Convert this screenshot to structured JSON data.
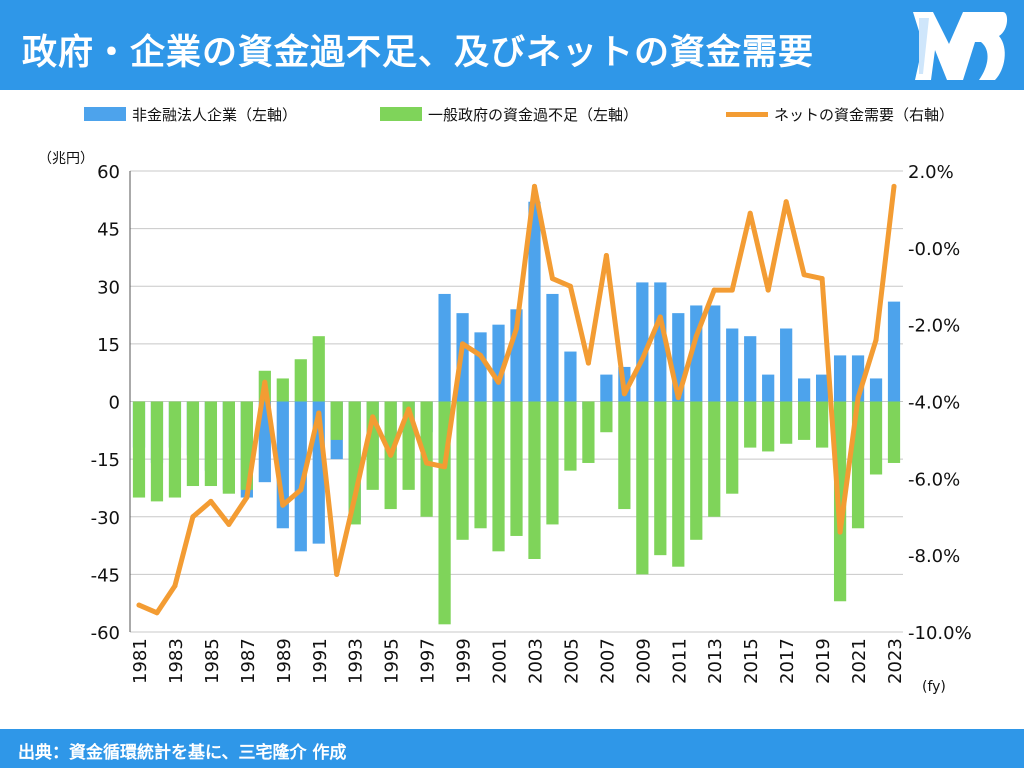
{
  "header": {
    "title": "政府・企業の資金過不足、及びネットの資金需要"
  },
  "footer": {
    "source": "出典：資金循環統計を基に、三宅隆介 作成"
  },
  "colors": {
    "header_bg": "#2f97e8",
    "corporate": "#4da3ec",
    "government": "#7fd45a",
    "net": "#f39c33"
  },
  "chart_data": {
    "type": "bar+line",
    "categories": [
      "1981",
      "1982",
      "1983",
      "1984",
      "1985",
      "1986",
      "1987",
      "1988",
      "1989",
      "1990",
      "1991",
      "1992",
      "1993",
      "1994",
      "1995",
      "1996",
      "1997",
      "1998",
      "1999",
      "2000",
      "2001",
      "2002",
      "2003",
      "2004",
      "2005",
      "2006",
      "2007",
      "2008",
      "2009",
      "2010",
      "2011",
      "2012",
      "2013",
      "2014",
      "2015",
      "2016",
      "2017",
      "2018",
      "2019",
      "2020",
      "2021",
      "2022",
      "2023"
    ],
    "x_tick_labels": [
      "1981",
      "1983",
      "1985",
      "1987",
      "1989",
      "1991",
      "1993",
      "1995",
      "1997",
      "1999",
      "2001",
      "2003",
      "2005",
      "2007",
      "2009",
      "2011",
      "2013",
      "2015",
      "2017",
      "2019",
      "2021",
      "2023"
    ],
    "x_unit": "(fy)",
    "left_axis": {
      "unit": "（兆円）",
      "ylim": [
        -60,
        60
      ],
      "ticks": [
        60,
        45,
        30,
        15,
        0,
        -15,
        -30,
        -45,
        -60
      ],
      "tick_labels": [
        "60",
        "45",
        "30",
        "15",
        "0",
        "-15",
        "-30",
        "-45",
        "-60"
      ]
    },
    "right_axis": {
      "ylim": [
        -10.0,
        2.0
      ],
      "ticks": [
        2.0,
        0.0,
        -2.0,
        -4.0,
        -6.0,
        -8.0,
        -10.0
      ],
      "tick_labels": [
        "2.0%",
        "-0.0%",
        "-2.0%",
        "-4.0%",
        "-6.0%",
        "-8.0%",
        "-10.0%"
      ]
    },
    "legend_position": "top",
    "series": [
      {
        "name": "非金融法人企業（左軸）",
        "type": "bar",
        "axis": "left",
        "values": [
          -12,
          -16,
          -12,
          -14,
          -18,
          -23,
          -25,
          -21,
          -33,
          -39,
          -37,
          -15,
          -31,
          -15,
          -13,
          -10,
          -8,
          28,
          23,
          18,
          20,
          24,
          52,
          28,
          13,
          -2,
          7,
          9,
          31,
          31,
          23,
          25,
          25,
          19,
          17,
          7,
          19,
          6,
          7,
          12,
          12,
          6,
          26
        ]
      },
      {
        "name": "一般政府の資金過不足（左軸）",
        "type": "bar",
        "axis": "left",
        "values": [
          -25,
          -26,
          -25,
          -22,
          -22,
          -24,
          -23,
          8,
          6,
          11,
          17,
          -10,
          -32,
          -23,
          -28,
          -23,
          -30,
          -58,
          -36,
          -33,
          -39,
          -35,
          -41,
          -32,
          -18,
          -16,
          -8,
          -28,
          -45,
          -40,
          -43,
          -36,
          -30,
          -24,
          -12,
          -13,
          -11,
          -10,
          -12,
          -52,
          -33,
          -19,
          -16
        ]
      },
      {
        "name": "ネットの資金需要（右軸）",
        "type": "line",
        "axis": "right",
        "values": [
          -9.3,
          -9.5,
          -8.8,
          -7.0,
          -6.6,
          -7.2,
          -6.5,
          -3.5,
          -6.7,
          -6.3,
          -4.3,
          -8.5,
          -6.5,
          -4.4,
          -5.4,
          -4.2,
          -5.6,
          -5.7,
          -2.5,
          -2.8,
          -3.5,
          -2.1,
          1.6,
          -0.8,
          -1.0,
          -3.0,
          -0.2,
          -3.8,
          -2.9,
          -1.8,
          -3.9,
          -2.3,
          -1.1,
          -1.1,
          0.9,
          -1.1,
          1.2,
          -0.7,
          -0.8,
          -7.4,
          -3.9,
          -2.4,
          1.6
        ]
      }
    ]
  }
}
